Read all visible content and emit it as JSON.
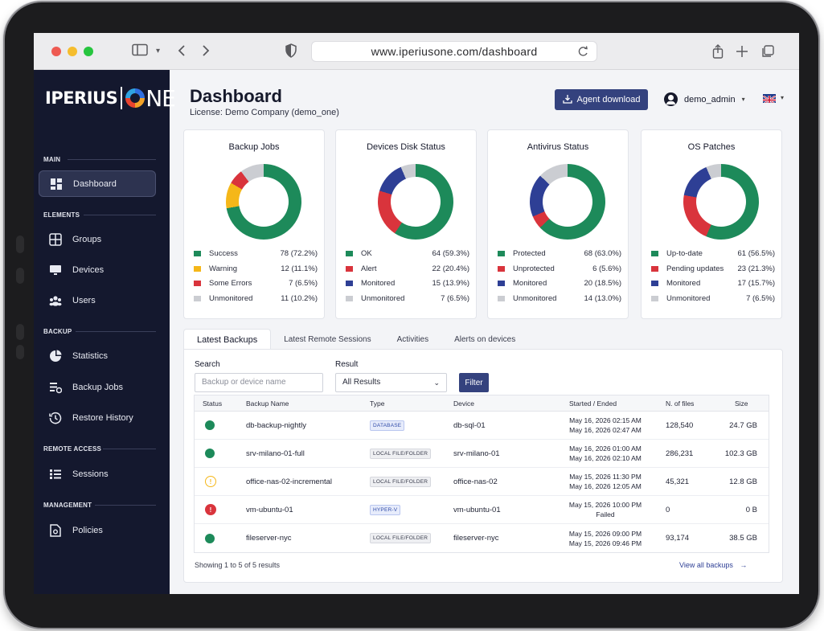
{
  "browser": {
    "url": "www.iperiusone.com/dashboard"
  },
  "brand": {
    "logo_left": "IPERIUS",
    "logo_right": "NE"
  },
  "sidebar": {
    "sections": [
      {
        "label": "MAIN"
      },
      {
        "label": "ELEMENTS"
      },
      {
        "label": "BACKUP"
      },
      {
        "label": "REMOTE ACCESS"
      },
      {
        "label": "MANAGEMENT"
      }
    ],
    "items": [
      {
        "label": "Dashboard",
        "icon": "dashboard-grid-icon",
        "active": true
      },
      {
        "label": "Groups",
        "icon": "groups-icon"
      },
      {
        "label": "Devices",
        "icon": "monitor-icon"
      },
      {
        "label": "Users",
        "icon": "users-icon"
      },
      {
        "label": "Statistics",
        "icon": "pie-chart-icon"
      },
      {
        "label": "Backup Jobs",
        "icon": "backup-jobs-icon"
      },
      {
        "label": "Restore History",
        "icon": "history-icon"
      },
      {
        "label": "Sessions",
        "icon": "sessions-list-icon"
      },
      {
        "label": "Policies",
        "icon": "policies-icon"
      }
    ]
  },
  "header": {
    "title": "Dashboard",
    "license": "License: Demo Company (demo_one)",
    "agent_button": "Agent download",
    "username": "demo_admin"
  },
  "colors": {
    "green": "#1d8a5a",
    "yellow": "#f5b719",
    "red": "#d9343c",
    "blue": "#2e3f95",
    "gray": "#cbcdd2",
    "accent": "#34427e"
  },
  "cards": [
    {
      "title": "Backup Jobs",
      "legend": [
        {
          "label": "Success",
          "value": "78 (72.2%)",
          "pct": 72.2,
          "color": "green"
        },
        {
          "label": "Warning",
          "value": "12 (11.1%)",
          "pct": 11.1,
          "color": "yellow"
        },
        {
          "label": "Some Errors",
          "value": "7 (6.5%)",
          "pct": 6.5,
          "color": "red"
        },
        {
          "label": "Unmonitored",
          "value": "11 (10.2%)",
          "pct": 10.2,
          "color": "gray"
        }
      ]
    },
    {
      "title": "Devices Disk Status",
      "legend": [
        {
          "label": "OK",
          "value": "64 (59.3%)",
          "pct": 59.3,
          "color": "green"
        },
        {
          "label": "Alert",
          "value": "22 (20.4%)",
          "pct": 20.4,
          "color": "red"
        },
        {
          "label": "Monitored",
          "value": "15 (13.9%)",
          "pct": 13.9,
          "color": "blue"
        },
        {
          "label": "Unmonitored",
          "value": "7 (6.5%)",
          "pct": 6.5,
          "color": "gray"
        }
      ]
    },
    {
      "title": "Antivirus Status",
      "legend": [
        {
          "label": "Protected",
          "value": "68 (63.0%)",
          "pct": 63.0,
          "color": "green"
        },
        {
          "label": "Unprotected",
          "value": "6 (5.6%)",
          "pct": 5.6,
          "color": "red"
        },
        {
          "label": "Monitored",
          "value": "20 (18.5%)",
          "pct": 18.5,
          "color": "blue"
        },
        {
          "label": "Unmonitored",
          "value": "14 (13.0%)",
          "pct": 13.0,
          "color": "gray"
        }
      ]
    },
    {
      "title": "OS Patches",
      "legend": [
        {
          "label": "Up-to-date",
          "value": "61 (56.5%)",
          "pct": 56.5,
          "color": "green"
        },
        {
          "label": "Pending updates",
          "value": "23 (21.3%)",
          "pct": 21.3,
          "color": "red"
        },
        {
          "label": "Monitored",
          "value": "17 (15.7%)",
          "pct": 15.7,
          "color": "blue"
        },
        {
          "label": "Unmonitored",
          "value": "7 (6.5%)",
          "pct": 6.5,
          "color": "gray"
        }
      ]
    }
  ],
  "tabs": [
    "Latest Backups",
    "Latest Remote Sessions",
    "Activities",
    "Alerts on devices"
  ],
  "filters": {
    "search_label": "Search",
    "search_placeholder": "Backup or device name",
    "result_label": "Result",
    "result_value": "All Results",
    "filter_button": "Filter"
  },
  "table": {
    "headers": [
      "Status",
      "Backup Name",
      "Type",
      "Device",
      "Started / Ended",
      "N. of files",
      "Size"
    ],
    "rows": [
      {
        "status": "success",
        "name": "db-backup-nightly",
        "type": "DATABASE",
        "device": "db-sql-01",
        "start": "May 16, 2026 02:15 AM",
        "end": "May 16, 2026 02:47 AM",
        "files": "128,540",
        "size": "24.7 GB"
      },
      {
        "status": "success",
        "name": "srv-milano-01-full",
        "type": "LOCAL FILE/FOLDER",
        "device": "srv-milano-01",
        "start": "May 16, 2026 01:00 AM",
        "end": "May 16, 2026 02:10 AM",
        "files": "286,231",
        "size": "102.3 GB"
      },
      {
        "status": "warning",
        "name": "office-nas-02-incremental",
        "type": "LOCAL FILE/FOLDER",
        "device": "office-nas-02",
        "start": "May 15, 2026 11:30 PM",
        "end": "May 16, 2026 12:05 AM",
        "files": "45,321",
        "size": "12.8 GB"
      },
      {
        "status": "error",
        "name": "vm-ubuntu-01",
        "type": "HYPER-V",
        "device": "vm-ubuntu-01",
        "start": "May 15, 2026 10:00 PM",
        "end": "Failed",
        "files": "0",
        "size": "0 B"
      },
      {
        "status": "success",
        "name": "fileserver-nyc",
        "type": "LOCAL FILE/FOLDER",
        "device": "fileserver-nyc",
        "start": "May 15, 2026 09:00 PM",
        "end": "May 15, 2026 09:46 PM",
        "files": "93,174",
        "size": "38.5 GB"
      }
    ],
    "footer": "Showing 1 to 5 of 5 results",
    "view_all": "View all backups"
  }
}
